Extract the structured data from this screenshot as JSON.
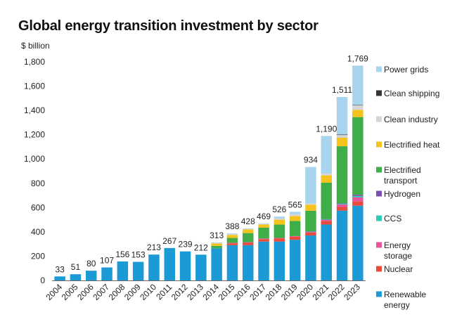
{
  "chart_data": {
    "type": "bar",
    "stacked": true,
    "title": "Global energy transition investment by sector",
    "ylabel": "$ billion",
    "xlabel": "",
    "ylim": [
      0,
      1800
    ],
    "yticks": [
      "0",
      "200",
      "400",
      "600",
      "800",
      "1,000",
      "1,200",
      "1,400",
      "1,600",
      "1,800"
    ],
    "categories": [
      "2004",
      "2005",
      "2006",
      "2007",
      "2008",
      "2009",
      "2010",
      "2011",
      "2012",
      "2013",
      "2014",
      "2015",
      "2016",
      "2017",
      "2018",
      "2019",
      "2020",
      "2021",
      "2022",
      "2023"
    ],
    "totals": [
      33,
      51,
      80,
      107,
      156,
      153,
      213,
      267,
      239,
      212,
      313,
      388,
      428,
      469,
      526,
      565,
      934,
      1190,
      1511,
      1769
    ],
    "total_labels": [
      "33",
      "51",
      "80",
      "107",
      "156",
      "153",
      "213",
      "267",
      "239",
      "212",
      "313",
      "388",
      "428",
      "469",
      "526",
      "565",
      "934",
      "1,190",
      "1,511",
      "1,769"
    ],
    "legend_position": "right",
    "grid": false,
    "series": [
      {
        "name": "Renewable energy",
        "color": "#1b9ad6",
        "values": [
          33,
          51,
          80,
          107,
          156,
          153,
          213,
          267,
          239,
          212,
          265,
          290,
          290,
          320,
          320,
          335,
          370,
          460,
          575,
          615
        ]
      },
      {
        "name": "Nuclear",
        "color": "#e84b3a",
        "values": [
          0,
          0,
          0,
          0,
          0,
          0,
          0,
          0,
          0,
          0,
          0,
          15,
          20,
          20,
          25,
          25,
          25,
          30,
          30,
          35
        ]
      },
      {
        "name": "Energy storage",
        "color": "#e8559b",
        "values": [
          0,
          0,
          0,
          0,
          0,
          0,
          0,
          0,
          0,
          0,
          0,
          5,
          5,
          5,
          5,
          5,
          5,
          10,
          20,
          35
        ]
      },
      {
        "name": "CCS",
        "color": "#2cc9b5",
        "values": [
          0,
          0,
          0,
          0,
          0,
          0,
          0,
          0,
          0,
          0,
          0,
          0,
          0,
          0,
          0,
          0,
          2,
          2,
          5,
          10
        ]
      },
      {
        "name": "Hydrogen",
        "color": "#7a4fb0",
        "values": [
          0,
          0,
          0,
          0,
          0,
          0,
          0,
          0,
          0,
          0,
          0,
          0,
          0,
          0,
          0,
          0,
          2,
          3,
          5,
          10
        ]
      },
      {
        "name": "Electrified transport",
        "color": "#3fae49",
        "values": [
          0,
          0,
          0,
          0,
          0,
          0,
          0,
          0,
          0,
          0,
          20,
          40,
          75,
          90,
          110,
          125,
          170,
          300,
          470,
          640
        ]
      },
      {
        "name": "Electrified heat",
        "color": "#f6c31d",
        "values": [
          0,
          0,
          0,
          0,
          0,
          0,
          0,
          0,
          0,
          0,
          20,
          25,
          30,
          25,
          40,
          40,
          50,
          60,
          70,
          60
        ]
      },
      {
        "name": "Clean industry",
        "color": "#d6d6d6",
        "values": [
          0,
          0,
          0,
          0,
          0,
          0,
          0,
          0,
          0,
          0,
          4,
          8,
          5,
          5,
          10,
          15,
          10,
          15,
          25,
          40
        ]
      },
      {
        "name": "Clean shipping",
        "color": "#333333",
        "values": [
          0,
          0,
          0,
          0,
          0,
          0,
          0,
          0,
          0,
          0,
          0,
          0,
          0,
          0,
          0,
          0,
          0,
          0,
          1,
          1
        ]
      },
      {
        "name": "Power grids",
        "color": "#a9d4ee",
        "values": [
          0,
          0,
          0,
          0,
          0,
          0,
          0,
          0,
          0,
          0,
          4,
          5,
          3,
          4,
          16,
          20,
          300,
          310,
          310,
          323
        ]
      }
    ],
    "legend": [
      {
        "lines": [
          "Power grids"
        ],
        "color": "#a9d4ee"
      },
      {
        "lines": [
          "Clean shipping"
        ],
        "color": "#333333"
      },
      {
        "lines": [
          "Clean industry"
        ],
        "color": "#d6d6d6"
      },
      {
        "lines": [
          "Electrified heat"
        ],
        "color": "#f6c31d"
      },
      {
        "lines": [
          "Electrified",
          "transport"
        ],
        "color": "#3fae49"
      },
      {
        "lines": [
          "Hydrogen"
        ],
        "color": "#7a4fb0"
      },
      {
        "lines": [
          "CCS"
        ],
        "color": "#2cc9b5"
      },
      {
        "lines": [
          "Energy",
          "storage"
        ],
        "color": "#e8559b"
      },
      {
        "lines": [
          "Nuclear"
        ],
        "color": "#e84b3a"
      },
      {
        "lines": [
          "Renewable",
          "energy"
        ],
        "color": "#1b9ad6"
      }
    ]
  }
}
